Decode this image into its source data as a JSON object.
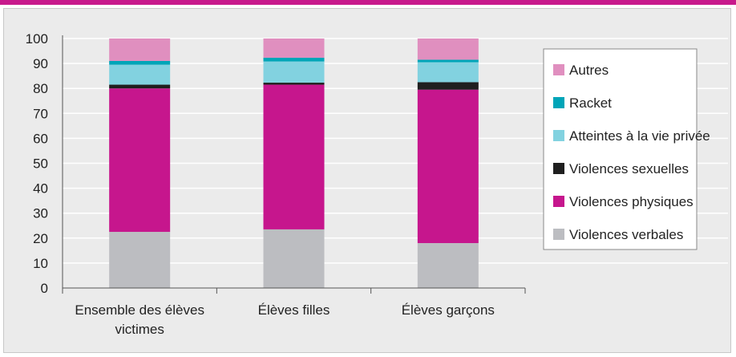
{
  "colors": {
    "accent": "#c81a8c",
    "panel": "#ebebeb"
  },
  "chart_data": {
    "type": "bar",
    "stacked": true,
    "categories": [
      "Ensemble des élèves victimes",
      "Élèves filles",
      "Élèves garçons"
    ],
    "category_lines": [
      [
        "Ensemble des élèves",
        "victimes"
      ],
      [
        "Élèves filles"
      ],
      [
        "Élèves garçons"
      ]
    ],
    "ylim": [
      0,
      100
    ],
    "yticks": [
      0,
      10,
      20,
      30,
      40,
      50,
      60,
      70,
      80,
      90,
      100
    ],
    "grid": true,
    "legend_position": "right",
    "series": [
      {
        "name": "Violences verbales",
        "color": "#bcbdc1",
        "values": [
          22.5,
          23.5,
          18
        ]
      },
      {
        "name": "Violences physiques",
        "color": "#c6168d",
        "values": [
          57.5,
          58,
          61.5
        ]
      },
      {
        "name": "Violences sexuelles",
        "color": "#1f1f1f",
        "values": [
          1.5,
          0.8,
          3
        ]
      },
      {
        "name": "Atteintes à la vie privée",
        "color": "#82d2e0",
        "values": [
          8,
          8.5,
          8
        ]
      },
      {
        "name": "Racket",
        "color": "#00a5b8",
        "values": [
          1.5,
          1.5,
          1
        ]
      },
      {
        "name": "Autres",
        "color": "#e08fbf",
        "values": [
          9,
          7.7,
          8.5
        ]
      }
    ]
  }
}
